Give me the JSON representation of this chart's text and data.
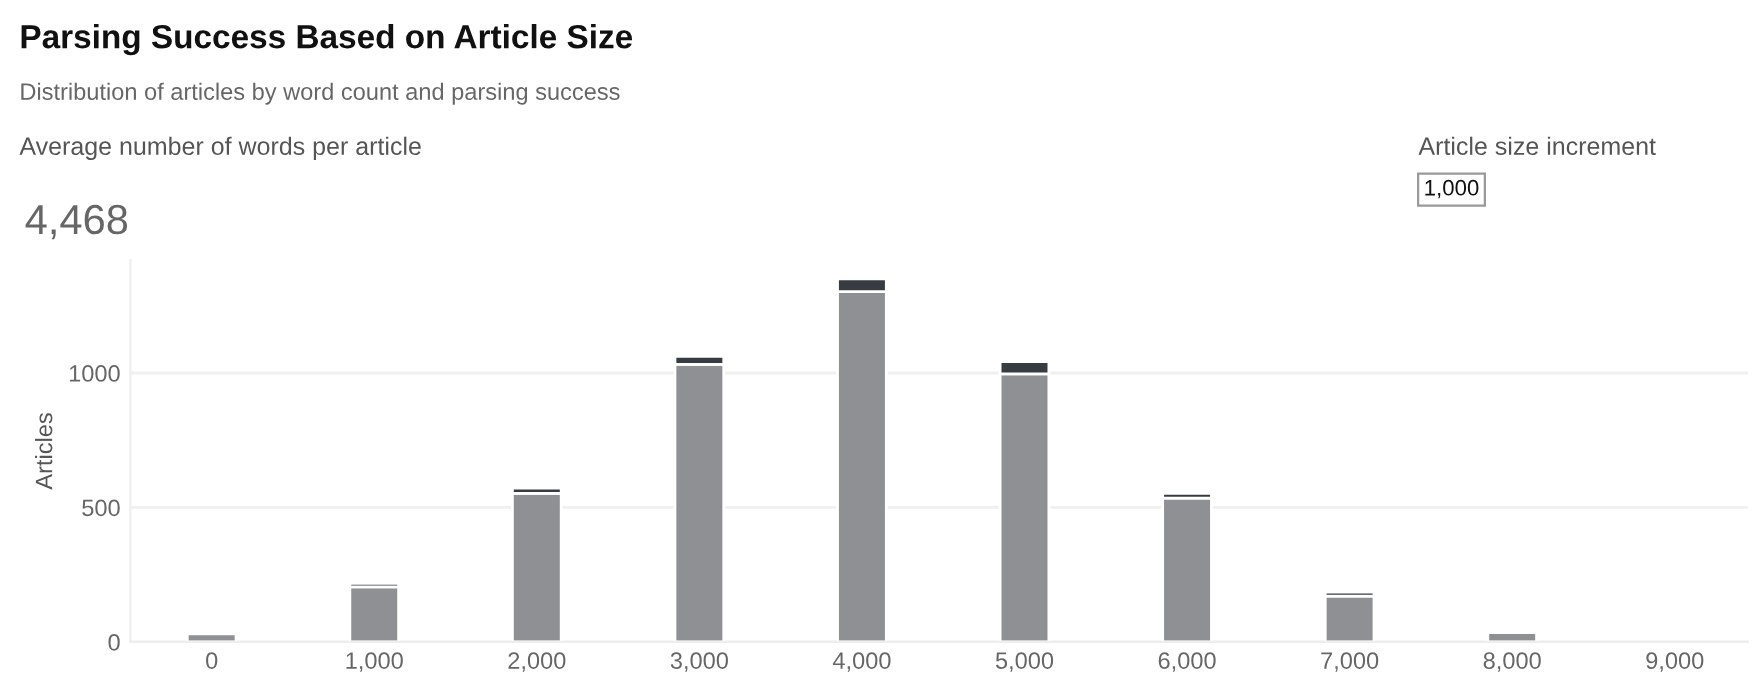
{
  "chart_data": {
    "type": "bar",
    "title": "Parsing Success Based on Article Size",
    "subtitle": "Distribution of articles by word count and parsing success",
    "ylabel": "Articles",
    "annotations": [
      "Average number of words per article",
      "4,468",
      "Article size increment",
      "1,000"
    ],
    "x": [
      0,
      1000,
      2000,
      3000,
      4000,
      5000,
      6000,
      7000,
      8000
    ],
    "stacked": true,
    "series": [
      {
        "color": "#8e9094",
        "values": [
          30,
          205,
          552,
          1032,
          1303,
          997,
          535,
          170,
          35
        ]
      },
      {
        "color": "#373c43",
        "values": [
          null,
          13,
          20,
          30,
          47,
          45,
          17,
          15,
          null
        ]
      }
    ],
    "xlim": [
      -500,
      9450
    ],
    "xticks": [
      0,
      {
        "value": 1000,
        "label": "1,000"
      },
      {
        "value": 2000,
        "label": "2,000"
      },
      {
        "value": 3000,
        "label": "3,000"
      },
      {
        "value": 4000,
        "label": "4,000"
      },
      {
        "value": 5000,
        "label": "5,000"
      },
      {
        "value": 6000,
        "label": "6,000"
      },
      {
        "value": 7000,
        "label": "7,000"
      },
      {
        "value": 8000,
        "label": "8,000"
      },
      {
        "value": 9000,
        "label": "9,000"
      }
    ],
    "ylim": [
      0,
      1420
    ],
    "yticks": [
      0,
      500,
      1000
    ],
    "grid": "y",
    "legend": false
  }
}
